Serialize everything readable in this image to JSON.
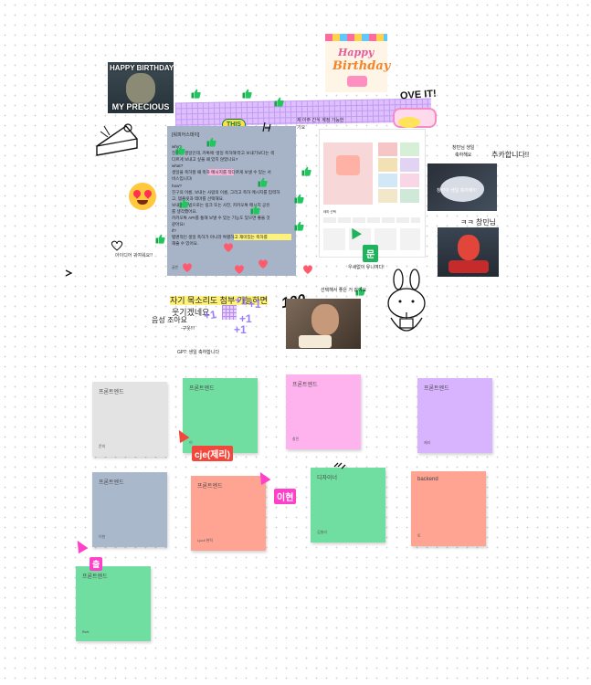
{
  "gifs": {
    "gollum_top": "HAPPY BIRTHDAY",
    "gollum_bottom": "MY PRECIOUS",
    "birthday_card_top": "Happy",
    "birthday_card_mid": "Birthday"
  },
  "stickers": {
    "ove_it": "OVE IT!",
    "this_badge": "THIS"
  },
  "doc": {
    "title": "[워피어스데이]",
    "lines": [
      "why?",
      "친구가 생일인데, 카톡에 '생일 축하해'라고 보내기보다는 색",
      "다르게 보내고 싶을 때 있지 않았나요?",
      "what?",
      "생일을 축하할 때 축하 메시지를 작다르게 보낼 수 있는 서",
      "비스입니다!",
      "how?",
      "친구의 이름, 보내는 사람의 이름, 그리고 축하 메시지를 입력하",
      "고, 템플릿과 테마를 선택해요.",
      "보내는 방법으로는 링크 또는 사진, 카카오톡 메시지 공유",
      "를 생각했어요.",
      "카카오톡 API를 통해 보낼 수 있는 기능도 있으면 좋을 것",
      "같아요!",
      "if?",
      "탭밴적인 생일 축하가 아니라 특별하고 재미있는 축하를",
      "해줄 수 있어요."
    ],
    "footer": "글쓴"
  },
  "annotations": {
    "top_note": "제 아주 간식 계정 가능한",
    "top_note2": "기요",
    "favorite_note": "아이디어 귀여워요!!",
    "voice_note": "자기 목소리도 첨부 가능하면",
    "funny_note": "웃기겠네요",
    "voice_good": "음성 조아요",
    "agree": "-구웃!!!",
    "gpt_note": "GPT: 생일 축하합니다",
    "cute_note": "우세없이 유니여다!",
    "choose_note": "선택해서 좋은 거 같아요",
    "congrats_small": "창민님 생일",
    "congrats_small2": "축하해요",
    "congrats_big": "추카합니다!!",
    "changmin": "ㅋㅋ 창민님",
    "plus_one_a": "+1",
    "plus_one_b": "+1",
    "plus_one_c": "+1",
    "plus_one_d": "+1",
    "plus_one_e": "+1",
    "hundred": "100",
    "cake_text": "창민아 생일 축하해!!!"
  },
  "mockup": {
    "tabs": [
      "",
      "",
      ""
    ],
    "section": "테마 선택"
  },
  "badges": {
    "moon": "문",
    "chul": "출"
  },
  "cursors": {
    "jerry": "cje(제리)",
    "ihyeon": "이현",
    "chul_label": "출"
  },
  "colors": {
    "gray": "#e3e3e3",
    "green": "#71dea1",
    "pink": "#ffb3ee",
    "purple": "#d8b4fe",
    "slate": "#aab8cc",
    "salmon": "#ffa493",
    "cursor_red": "#f4473c",
    "cursor_pink": "#ff40c8"
  },
  "stickies": [
    {
      "name": "프론트엔드",
      "sub": "문의"
    },
    {
      "name": "프론트엔드",
      "sub": "이"
    },
    {
      "name": "프론트엔드",
      "sub": "창민"
    },
    {
      "name": "프론트엔드",
      "sub": "제리"
    },
    {
      "name": "프론트엔드",
      "sub": "이현"
    },
    {
      "name": "프론트엔드",
      "sub": "Ljudi 현직"
    },
    {
      "name": "디자이너",
      "sub": "김칠리"
    },
    {
      "name": "backend",
      "sub": "토"
    },
    {
      "name": "프론트엔드",
      "sub": "Bwk"
    }
  ]
}
